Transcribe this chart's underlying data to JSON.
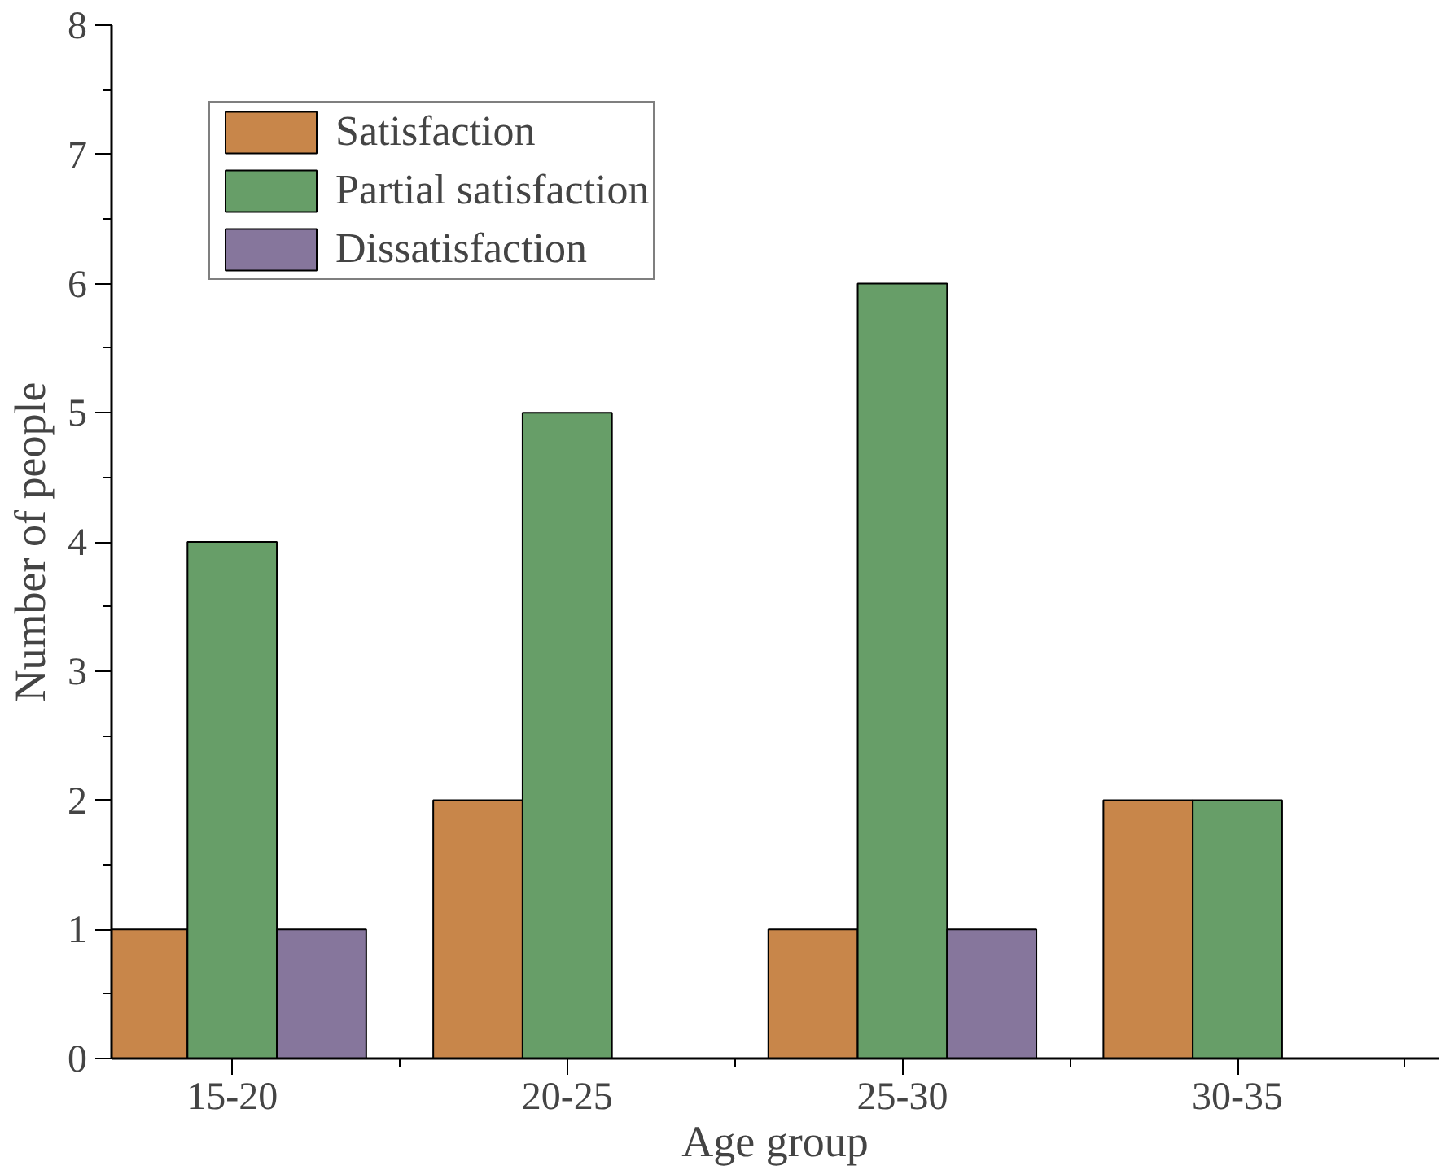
{
  "chart_data": {
    "type": "bar",
    "xlabel": "Age group",
    "ylabel": "Number of people",
    "categories": [
      "15-20",
      "20-25",
      "25-30",
      "30-35"
    ],
    "series": [
      {
        "name": "Satisfaction",
        "color": "#c8864a",
        "values": [
          1,
          2,
          1,
          2
        ]
      },
      {
        "name": "Partial satisfaction",
        "color": "#679e68",
        "values": [
          4,
          5,
          6,
          2
        ]
      },
      {
        "name": "Dissatisfaction",
        "color": "#86769c",
        "values": [
          1,
          null,
          1,
          null
        ]
      }
    ],
    "ylim": [
      0,
      8
    ],
    "yticks": [
      0,
      1,
      2,
      3,
      4,
      5,
      6,
      7,
      8
    ],
    "grid": false,
    "legend": "top left"
  }
}
